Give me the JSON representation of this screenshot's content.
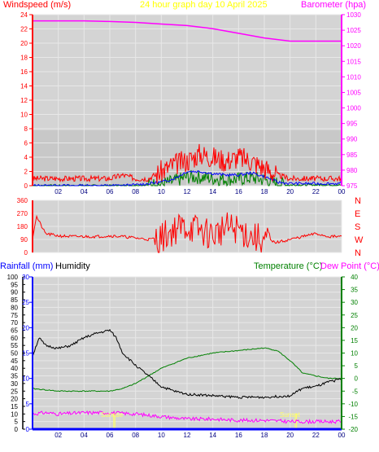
{
  "header": {
    "wind_label": "Windspeed (m/s)",
    "title": "24 hour graph day   10 April 2025",
    "baro_label": "Barometer (hpa)"
  },
  "lower_header": {
    "rain_label": "Rainfall (mm)",
    "hum_label": "Humidity",
    "temp_label": "Temperature (°C)",
    "dew_label": "Dew Point (°C)"
  },
  "colors": {
    "wind": "#ff0000",
    "gust_blue": "#0000ff",
    "avg_green": "#008000",
    "barometer": "#ff00ff",
    "rain": "#0000ff",
    "humidity": "#000000",
    "temperature": "#008000",
    "dewpoint": "#ff00ff",
    "solar": "#ffff66",
    "plot_bg": "#d4d4d4"
  },
  "chart_data": [
    {
      "type": "line",
      "title": "24 hour graph day   10 April 2025",
      "xlabel": "",
      "x_ticks": [
        "02",
        "04",
        "06",
        "08",
        "10",
        "12",
        "14",
        "16",
        "18",
        "20",
        "22",
        "00"
      ],
      "left_axis": {
        "label": "Windspeed (m/s)",
        "ylim": [
          0,
          24
        ],
        "ticks": [
          0,
          2,
          4,
          6,
          8,
          10,
          12,
          14,
          16,
          18,
          20,
          22,
          24
        ]
      },
      "right_axis": {
        "label": "Barometer (hpa)",
        "ylim": [
          975,
          1030
        ],
        "ticks": [
          975,
          980,
          985,
          990,
          995,
          1000,
          1005,
          1010,
          1015,
          1020,
          1025,
          1030
        ]
      },
      "series": [
        {
          "name": "Barometer (hpa)",
          "axis": "right",
          "x": [
            0,
            2,
            4,
            6,
            8,
            10,
            12,
            14,
            16,
            18,
            20,
            22,
            24
          ],
          "values": [
            1028,
            1028,
            1028,
            1027.8,
            1027.5,
            1027,
            1026.5,
            1025.5,
            1024,
            1022.5,
            1021.5,
            1021.5,
            1021.5
          ]
        },
        {
          "name": "Windspeed (m/s)",
          "axis": "left",
          "x": [
            0,
            1,
            2,
            3,
            4,
            5,
            6,
            7,
            8,
            9,
            10,
            11,
            12,
            13,
            14,
            15,
            16,
            17,
            18,
            19,
            20,
            21,
            22,
            23,
            24
          ],
          "values": [
            1,
            1,
            1,
            1,
            1,
            1,
            1,
            1.5,
            1,
            1,
            2,
            3,
            3.5,
            4.5,
            4,
            3.5,
            4,
            3.5,
            2.5,
            1.5,
            1,
            1,
            1,
            1,
            1
          ]
        },
        {
          "x": [
            0,
            2,
            4,
            6,
            8,
            10,
            11,
            12,
            13,
            14,
            15,
            16,
            17,
            18,
            19,
            20,
            22,
            24
          ],
          "values": [
            0,
            0,
            0,
            0,
            0.1,
            0.5,
            1,
            2,
            2,
            1.7,
            1.5,
            1.5,
            1.8,
            1.3,
            0.5,
            0.3,
            0.3,
            0.3
          ]
        },
        {
          "x": [
            0,
            2,
            4,
            6,
            8,
            10,
            11,
            12,
            13,
            14,
            15,
            16,
            17,
            18,
            19,
            20,
            22,
            24
          ],
          "values": [
            0,
            0,
            0,
            0,
            0,
            0.2,
            0.6,
            1.2,
            1.2,
            1,
            0.9,
            0.9,
            1.1,
            0.8,
            0.3,
            0.1,
            0.1,
            0.1
          ]
        }
      ]
    },
    {
      "type": "line",
      "xlabel": "",
      "x_ticks": [
        "02",
        "04",
        "06",
        "08",
        "10",
        "12",
        "14",
        "16",
        "18",
        "20",
        "22",
        "00"
      ],
      "left_axis": {
        "ylim": [
          0,
          360
        ],
        "ticks": [
          0,
          90,
          180,
          270,
          360
        ]
      },
      "right_axis": {
        "tick_labels": [
          "N",
          "W",
          "S",
          "E",
          "N"
        ]
      },
      "series": [
        {
          "x": [
            0,
            0.3,
            1,
            2,
            3,
            4,
            5,
            6,
            7,
            8,
            9,
            10,
            11,
            12,
            13,
            14,
            15,
            16,
            17,
            18,
            19,
            20,
            21,
            22,
            23,
            24
          ],
          "values": [
            100,
            250,
            130,
            115,
            110,
            110,
            110,
            115,
            110,
            100,
            90,
            100,
            160,
            180,
            150,
            120,
            170,
            160,
            110,
            80,
            70,
            90,
            110,
            130,
            110,
            110
          ]
        }
      ]
    },
    {
      "type": "line",
      "xlabel": "",
      "x_ticks": [
        "02",
        "04",
        "06",
        "08",
        "10",
        "12",
        "14",
        "16",
        "18",
        "20",
        "22",
        "00"
      ],
      "left_axis": {
        "label": "Humidity",
        "ylim": [
          0,
          100
        ],
        "ticks": [
          0,
          5,
          10,
          15,
          20,
          25,
          30,
          35,
          40,
          45,
          50,
          55,
          60,
          65,
          70,
          75,
          80,
          85,
          90,
          95,
          100
        ]
      },
      "rain_axis": {
        "label": "Rainfall (mm)",
        "ylim": [
          0,
          30
        ],
        "ticks": [
          0,
          5,
          10,
          15,
          20,
          25,
          30
        ]
      },
      "right_axis": {
        "label": "Temperature (°C)",
        "ylim": [
          -20,
          40
        ],
        "ticks": [
          -20,
          -15,
          -10,
          -5,
          0,
          5,
          10,
          15,
          20,
          25,
          30,
          35,
          40
        ]
      },
      "annotations": [
        "Sunrise",
        "Sunset"
      ],
      "series": [
        {
          "name": "Humidity",
          "axis": "left",
          "x": [
            0,
            0.5,
            1,
            2,
            3,
            4,
            5,
            6,
            6.5,
            7,
            8,
            9,
            10,
            11,
            12,
            14,
            16,
            18,
            20,
            21,
            22,
            23,
            24
          ],
          "values": [
            48,
            60,
            55,
            53,
            55,
            60,
            63,
            65,
            60,
            50,
            42,
            35,
            28,
            25,
            23,
            22,
            21,
            21,
            22,
            27,
            28,
            31,
            33
          ]
        },
        {
          "name": "Temperature (°C)",
          "axis": "right",
          "x": [
            0,
            2,
            4,
            6,
            7,
            8,
            9,
            10,
            11,
            12,
            13,
            14,
            16,
            18,
            19,
            20,
            21,
            22,
            23,
            24
          ],
          "values": [
            -4,
            -5,
            -5,
            -5,
            -4,
            -2,
            1,
            4,
            6,
            8,
            9,
            10,
            11,
            12,
            11,
            7,
            2,
            1,
            0,
            0
          ]
        },
        {
          "name": "Dew Point (°C)",
          "axis": "right",
          "x": [
            0,
            1,
            2,
            4,
            6,
            8,
            10,
            12,
            14,
            16,
            18,
            20,
            22,
            24
          ],
          "values": [
            -14,
            -13.5,
            -14,
            -13.5,
            -13.5,
            -14,
            -15,
            -16,
            -16,
            -16.5,
            -16.5,
            -17,
            -17,
            -17
          ]
        },
        {
          "name": "Rainfall (mm)",
          "axis": "rain",
          "x": [
            0,
            24
          ],
          "values": [
            0,
            0
          ]
        },
        {
          "axis": "rain",
          "x": [
            0,
            6.3,
            6.3,
            6.4,
            6.4,
            20.4,
            20.4,
            20.5,
            20.5,
            24
          ],
          "values": [
            0,
            0,
            3,
            3,
            0,
            0,
            3,
            3,
            0,
            0
          ]
        }
      ]
    }
  ]
}
